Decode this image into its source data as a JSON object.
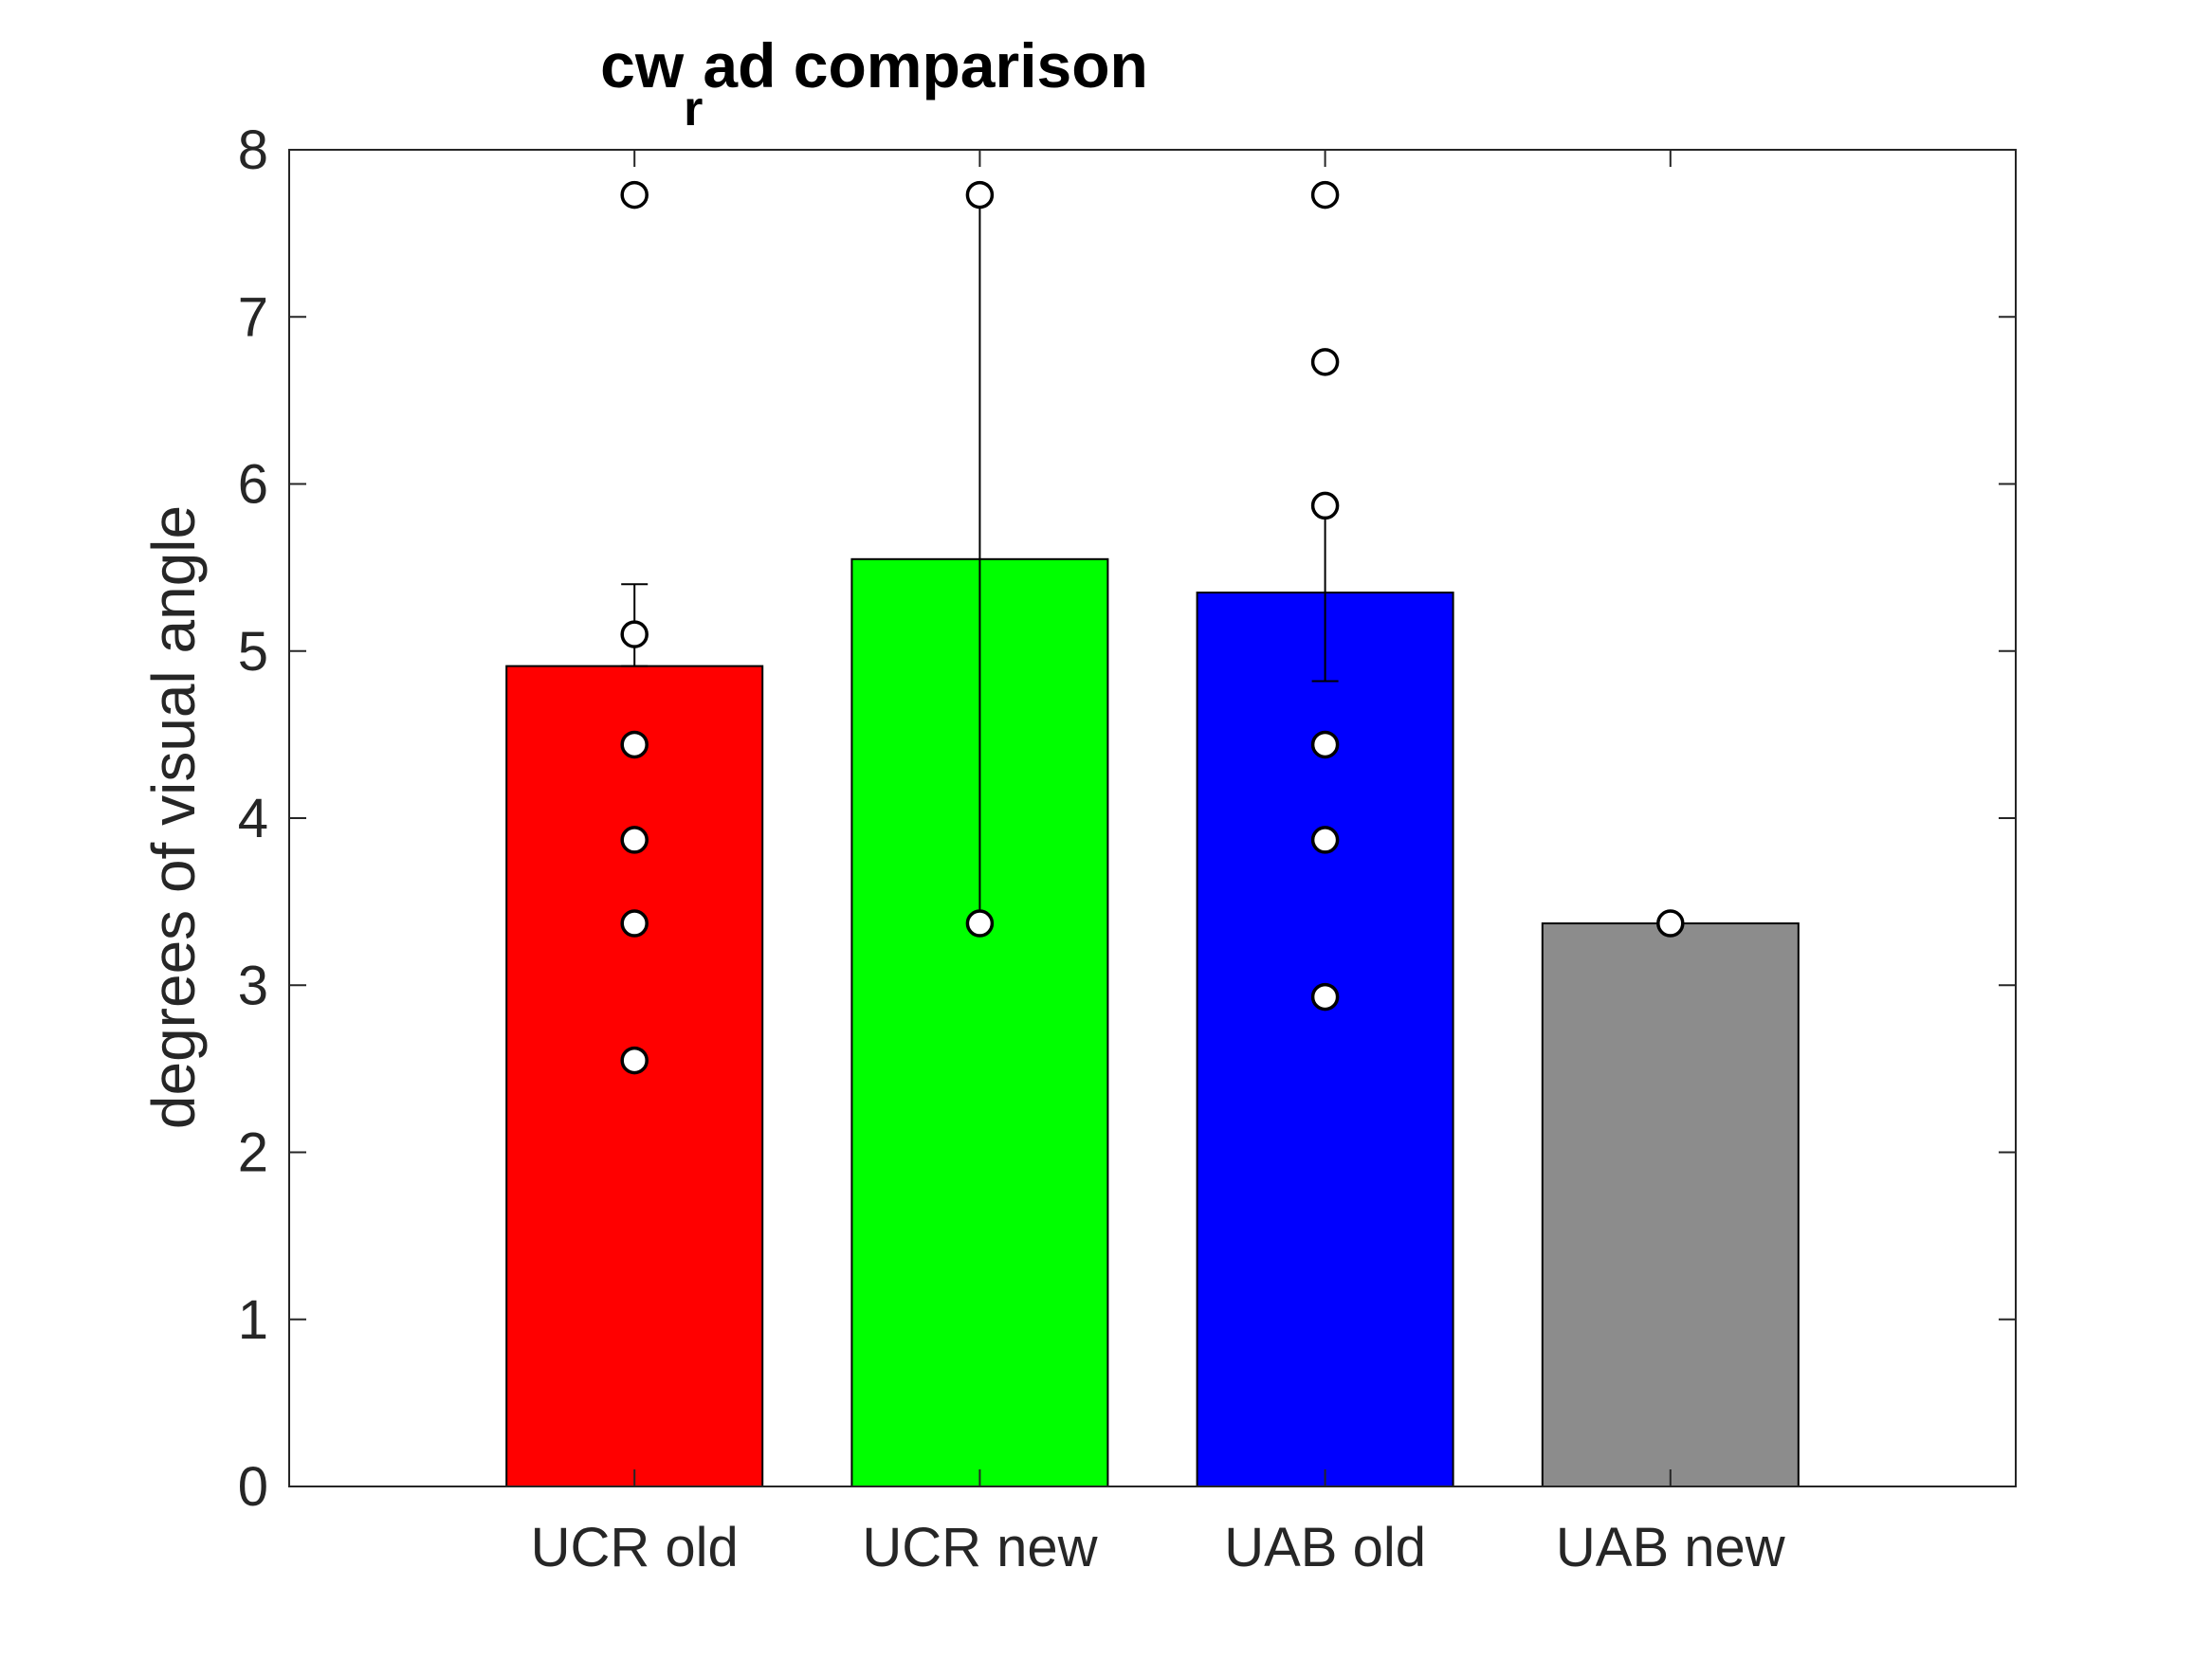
{
  "chart_data": {
    "type": "bar",
    "title": {
      "main": "cw",
      "subscript": "r",
      "rest": "ad comparison"
    },
    "ylabel": "degrees of visual angle",
    "xlabel": "",
    "ylim": [
      0,
      8
    ],
    "yticks": [
      "0",
      "1",
      "2",
      "3",
      "4",
      "5",
      "6",
      "7",
      "8"
    ],
    "categories": [
      "UCR old",
      "UCR new",
      "UAB old",
      "UAB new"
    ],
    "values": [
      4.91,
      5.55,
      5.35,
      3.37
    ],
    "bar_colors": [
      "#ff0000",
      "#00ff00",
      "#0000ff",
      "#8c8c8c"
    ],
    "error_bars": [
      {
        "lower": 4.91,
        "upper": 5.4
      },
      {
        "lower": 3.37,
        "upper": 7.73
      },
      {
        "lower": 4.82,
        "upper": 5.87
      },
      {
        "lower": 3.37,
        "upper": 3.37
      }
    ],
    "points": [
      [
        7.73,
        5.1,
        4.44,
        3.87,
        3.37,
        2.55
      ],
      [
        7.73,
        3.37
      ],
      [
        7.73,
        6.73,
        5.87,
        4.44,
        3.87,
        2.93
      ],
      [
        3.37
      ]
    ],
    "grid": false
  }
}
